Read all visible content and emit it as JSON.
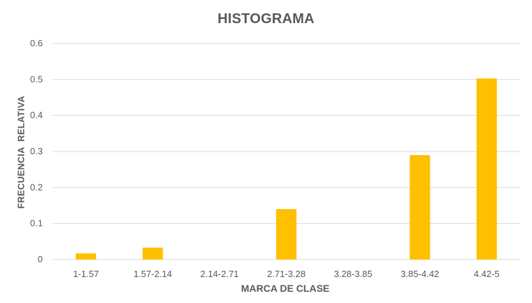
{
  "chart_data": {
    "type": "bar",
    "title": "HISTOGRAMA",
    "xlabel": "MARCA DE CLASE",
    "ylabel": "FRECUENCIA  RELATIVA",
    "categories": [
      "1-1.57",
      "1.57-2.14",
      "2.14-2.71",
      "2.71-3.28",
      "3.28-3.85",
      "3.85-4.42",
      "4.42-5"
    ],
    "values": [
      0.017,
      0.033,
      0,
      0.14,
      0,
      0.29,
      0.503
    ],
    "ylim": [
      0,
      0.6
    ],
    "yticks": [
      "0",
      "0.1",
      "0.2",
      "0.3",
      "0.4",
      "0.5",
      "0.6"
    ],
    "grid": true,
    "legend": "none",
    "colors": {
      "bar": "#FFC000",
      "grid": "#D9D9D9",
      "text": "#595959"
    }
  }
}
